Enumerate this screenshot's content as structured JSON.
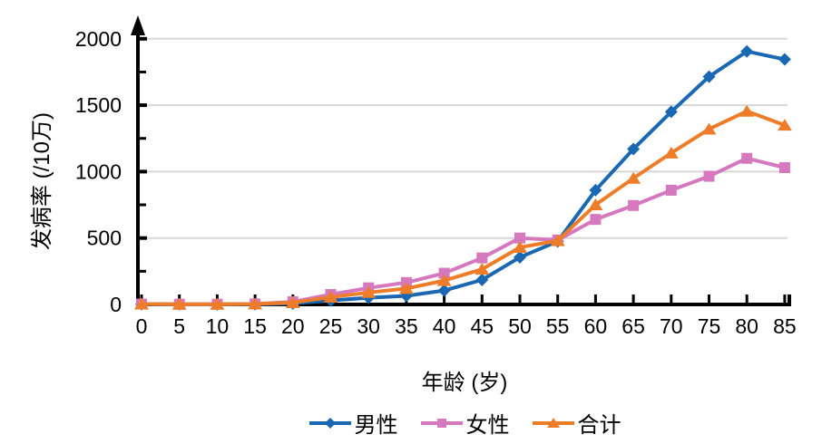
{
  "chart_data": {
    "type": "line",
    "title": "",
    "xlabel": "年龄 (岁)",
    "ylabel": "发病率 (/10万)",
    "x": [
      0,
      5,
      10,
      15,
      20,
      25,
      30,
      35,
      40,
      45,
      50,
      55,
      60,
      65,
      70,
      75,
      80,
      85
    ],
    "y_ticks": [
      0,
      500,
      1000,
      1500,
      2000
    ],
    "y_minor_step": 250,
    "ylim": [
      0,
      2000
    ],
    "grid": "horizontal-major-only",
    "legend_position": "bottom-center",
    "series": [
      {
        "name": "男性",
        "marker": "diamond",
        "color": "#1a68b2",
        "values": [
          2,
          1,
          1,
          2,
          8,
          30,
          50,
          65,
          105,
          185,
          355,
          475,
          860,
          1170,
          1450,
          1715,
          1905,
          1845
        ]
      },
      {
        "name": "女性",
        "marker": "square",
        "color": "#d678be",
        "values": [
          3,
          2,
          2,
          4,
          20,
          75,
          125,
          165,
          235,
          350,
          500,
          485,
          640,
          745,
          860,
          965,
          1100,
          1030
        ]
      },
      {
        "name": "合计",
        "marker": "triangle",
        "color": "#ee7d2a",
        "values": [
          3,
          2,
          2,
          3,
          14,
          55,
          90,
          120,
          180,
          265,
          430,
          480,
          750,
          950,
          1140,
          1320,
          1455,
          1350
        ]
      }
    ]
  },
  "colors": {
    "background": "#ffffff",
    "gridline": "#d6d6d6",
    "axis": "#000000",
    "text": "#000000"
  }
}
